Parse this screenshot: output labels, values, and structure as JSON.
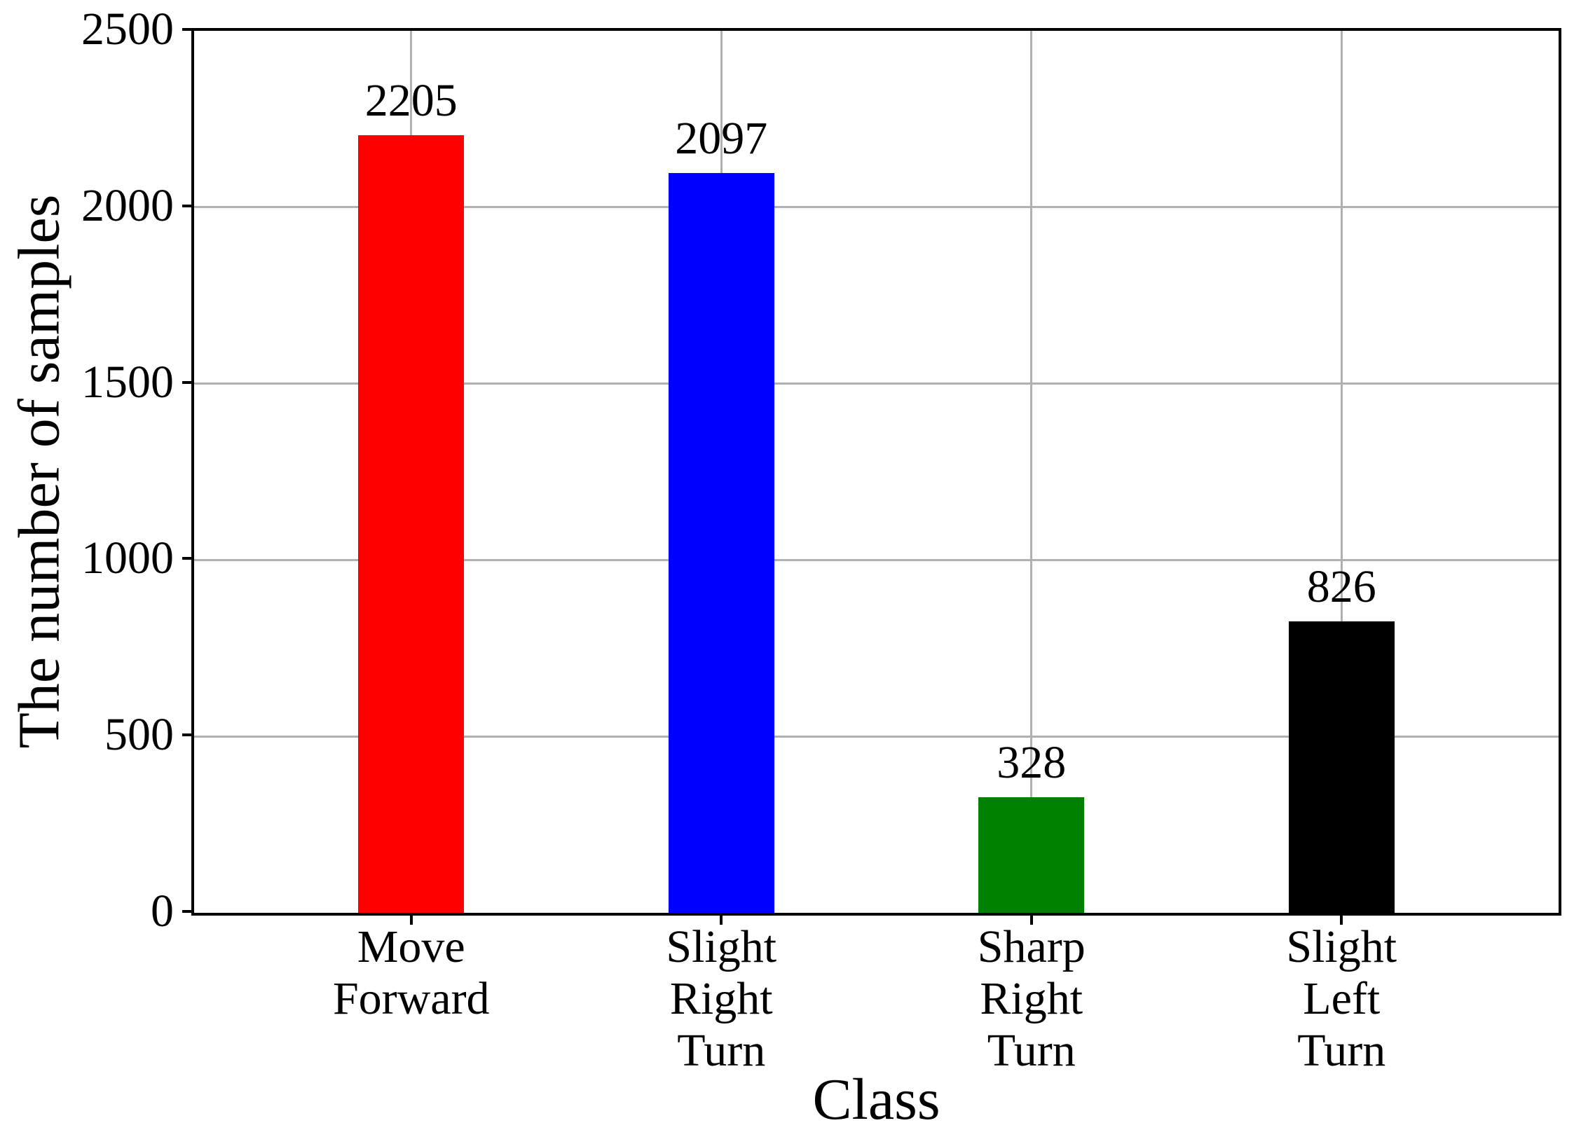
{
  "chart_data": {
    "type": "bar",
    "title": "",
    "xlabel": "Class",
    "ylabel": "The number of samples",
    "categories": [
      "Move\nForward",
      "Slight\nRight\nTurn",
      "Sharp\nRight\nTurn",
      "Slight\nLeft\nTurn"
    ],
    "values": [
      2205,
      2097,
      328,
      826
    ],
    "value_labels": [
      "2205",
      "2097",
      "328",
      "826"
    ],
    "bar_colors": [
      "#ff0000",
      "#0000ff",
      "#008000",
      "#000000"
    ],
    "ylim": [
      0,
      2500
    ],
    "yticks": [
      0,
      500,
      1000,
      1500,
      2000,
      2500
    ],
    "grid": true,
    "grid_color": "#b0b0b0",
    "axis_color": "#000000",
    "background": "#ffffff",
    "legend_position": "none"
  }
}
